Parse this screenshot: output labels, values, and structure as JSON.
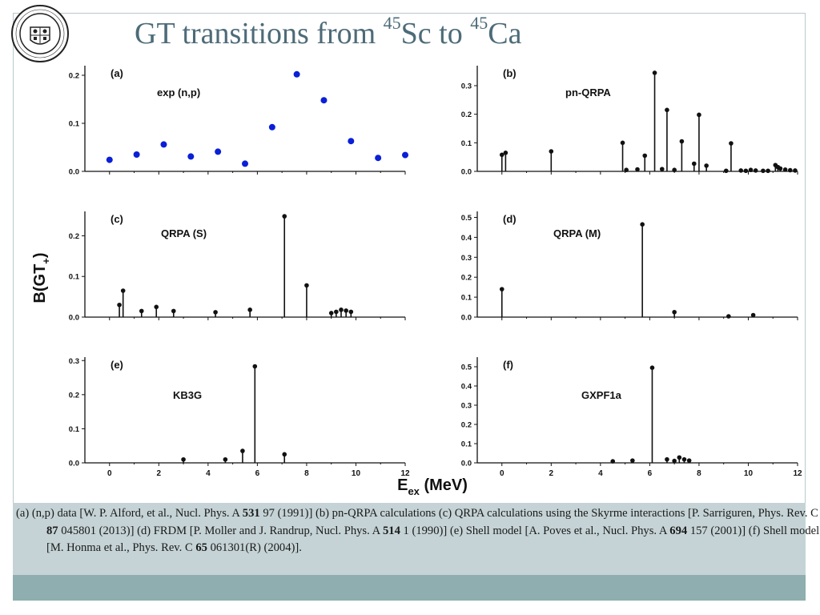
{
  "slide": {
    "title_main": "GT transitions from ",
    "title_sup1": "45",
    "title_mid": "Sc to ",
    "title_sup2": "45",
    "title_end": "Ca",
    "logo_text": "UNIVERSITY OF ENGINEERING SCIENCE AND TECHNOLOGY PAKISTAN"
  },
  "caption": {
    "p1": "(a)  (n,p) data [W. P. Alford, et al., Nucl. Phys. A ",
    "b1": "531",
    "p2": " 97 (1991)] (b) pn-QRPA calculations (c) QRPA calculations using the Skyrme interactions [P. Sarriguren, Phys. Rev. C ",
    "b2": "87",
    "p3": " 045801 (2013)] (d) FRDM [P. Moller and J. Randrup, Nucl. Phys. A ",
    "b3": "514",
    "p4": " 1 (1990)] (e) Shell model [A. Poves et al., Nucl. Phys. A ",
    "b4": "694",
    "p5": " 157 (2001)] (f) Shell model [M. Honma et al., Phys. Rev. C ",
    "b5": "65",
    "p6": " 061301(R) (2004)]."
  },
  "chart_data": [
    {
      "id": "a",
      "type": "scatter",
      "panel_label": "(a)",
      "label": "exp (n,p)",
      "xlim": [
        -1,
        12
      ],
      "ylim": [
        0,
        0.22
      ],
      "yticks": [
        0.0,
        0.1,
        0.2
      ],
      "x": [
        0.0,
        1.1,
        2.2,
        3.3,
        4.4,
        5.5,
        6.6,
        7.6,
        8.7,
        9.8,
        10.9,
        12.0
      ],
      "y": [
        0.024,
        0.035,
        0.056,
        0.031,
        0.041,
        0.016,
        0.092,
        0.202,
        0.148,
        0.063,
        0.028,
        0.034
      ],
      "color": "#0a1fd8"
    },
    {
      "id": "b",
      "type": "stem",
      "panel_label": "(b)",
      "label": "pn-QRPA",
      "xlim": [
        -1,
        12
      ],
      "ylim": [
        0,
        0.37
      ],
      "yticks": [
        0.0,
        0.1,
        0.2,
        0.3
      ],
      "x": [
        0.0,
        0.15,
        2.0,
        4.9,
        5.05,
        5.5,
        5.8,
        6.2,
        6.5,
        6.7,
        7.0,
        7.3,
        7.8,
        8.0,
        8.3,
        9.1,
        9.3,
        9.7,
        9.9,
        10.1,
        10.3,
        10.6,
        10.8,
        11.1,
        11.2,
        11.3,
        11.5,
        11.7,
        11.9
      ],
      "y": [
        0.058,
        0.065,
        0.07,
        0.1,
        0.005,
        0.007,
        0.055,
        0.345,
        0.008,
        0.215,
        0.005,
        0.105,
        0.027,
        0.198,
        0.02,
        0.002,
        0.098,
        0.003,
        0.002,
        0.005,
        0.003,
        0.002,
        0.002,
        0.022,
        0.015,
        0.01,
        0.006,
        0.004,
        0.003
      ],
      "color": "#111111"
    },
    {
      "id": "c",
      "type": "stem",
      "panel_label": "(c)",
      "label": "QRPA (S)",
      "xlim": [
        -1,
        12
      ],
      "ylim": [
        0,
        0.26
      ],
      "yticks": [
        0.0,
        0.1,
        0.2
      ],
      "x": [
        0.4,
        0.55,
        1.3,
        1.9,
        2.6,
        4.3,
        5.7,
        7.1,
        8.0,
        9.0,
        9.2,
        9.4,
        9.6,
        9.8
      ],
      "y": [
        0.03,
        0.065,
        0.015,
        0.025,
        0.015,
        0.012,
        0.018,
        0.248,
        0.078,
        0.01,
        0.013,
        0.018,
        0.016,
        0.013
      ],
      "color": "#111111"
    },
    {
      "id": "d",
      "type": "stem",
      "panel_label": "(d)",
      "label": "QRPA (M)",
      "xlim": [
        -1,
        12
      ],
      "ylim": [
        0,
        0.53
      ],
      "yticks": [
        0.0,
        0.1,
        0.2,
        0.3,
        0.4,
        0.5
      ],
      "x": [
        0.0,
        5.7,
        7.0,
        9.2,
        10.2
      ],
      "y": [
        0.14,
        0.465,
        0.025,
        0.004,
        0.01
      ],
      "color": "#111111"
    },
    {
      "id": "e",
      "type": "stem",
      "panel_label": "(e)",
      "label": "KB3G",
      "xlim": [
        -1,
        12
      ],
      "ylim": [
        0,
        0.31
      ],
      "yticks": [
        0.0,
        0.1,
        0.2,
        0.3
      ],
      "xticks": [
        0,
        2,
        4,
        6,
        8,
        10,
        12
      ],
      "x": [
        3.0,
        4.7,
        5.4,
        5.9,
        7.1
      ],
      "y": [
        0.01,
        0.01,
        0.035,
        0.283,
        0.025
      ],
      "color": "#111111"
    },
    {
      "id": "f",
      "type": "stem",
      "panel_label": "(f)",
      "label": "GXPF1a",
      "xlim": [
        -1,
        12
      ],
      "ylim": [
        0,
        0.55
      ],
      "yticks": [
        0.0,
        0.1,
        0.2,
        0.3,
        0.4,
        0.5
      ],
      "xticks": [
        0,
        2,
        4,
        6,
        8,
        10,
        12
      ],
      "x": [
        4.5,
        5.3,
        6.1,
        6.7,
        7.0,
        7.2,
        7.4,
        7.6
      ],
      "y": [
        0.008,
        0.012,
        0.495,
        0.018,
        0.01,
        0.028,
        0.018,
        0.012
      ],
      "color": "#111111"
    }
  ],
  "axes": {
    "ylabel_main": "B(GT",
    "ylabel_sub": "+",
    "ylabel_end": ")",
    "xlabel_main": "E",
    "xlabel_sub": "ex",
    "xlabel_end": " (MeV)"
  }
}
